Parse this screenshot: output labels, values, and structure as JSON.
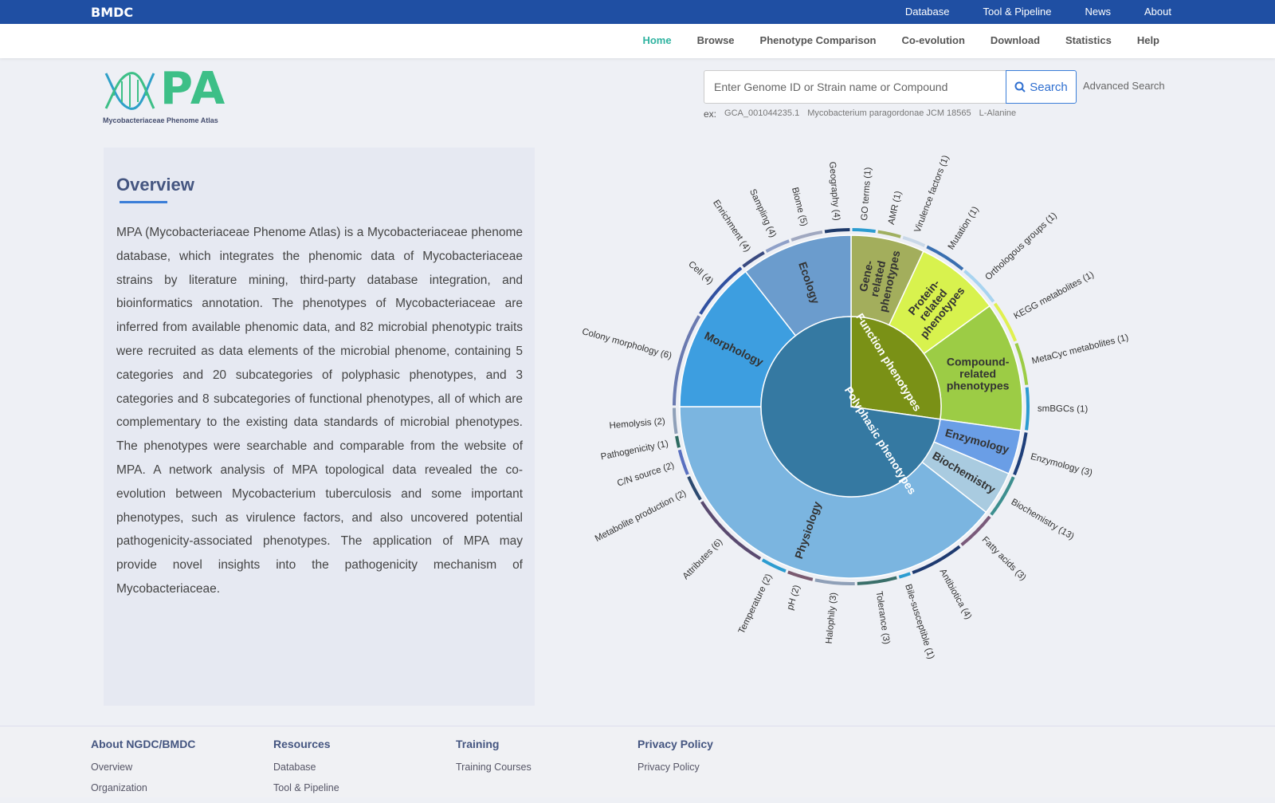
{
  "topbar": {
    "brand": "BMDC",
    "links": [
      "Database",
      "Tool & Pipeline",
      "News",
      "About"
    ]
  },
  "nav": {
    "items": [
      "Home",
      "Browse",
      "Phenotype Comparison",
      "Co-evolution",
      "Download",
      "Statistics",
      "Help"
    ],
    "active": "Home"
  },
  "logo": {
    "title": "PA",
    "subtitle": "Mycobacteriaceae Phenome Atlas"
  },
  "search": {
    "placeholder": "Enter Genome ID or Strain name or Compound",
    "button_label": "Search",
    "advanced_label": "Advanced Search",
    "examples_label": "ex:",
    "examples": [
      "GCA_001044235.1",
      "Mycobacterium paragordonae JCM 18565",
      "L-Alanine"
    ]
  },
  "overview": {
    "title": "Overview",
    "text": "MPA (Mycobacteriaceae Phenome Atlas) is a Mycobacteriaceae phenome database, which integrates the phenomic data of Mycobacteriaceae strains by literature mining, third-party database integration, and bioinformatics annotation. The phenotypes of Mycobacteriaceae are inferred from available phenomic data, and 82 microbial phenotypic traits were recruited as data elements of the microbial phenome, containing 5 categories and 20 subcategories of polyphasic phenotypes, and 3 categories and 8 subcategories of functional phenotypes, all of which are complementary to the existing data standards of microbial phenotypes. The phenotypes were searchable and comparable from the website of MPA. A network analysis of MPA topological data revealed the co-evolution between Mycobacterium tuberculosis and some important phenotypes, such as virulence factors, and also uncovered potential pathogenicity-associated phenotypes. The application of MPA may provide novel insights into the pathogenicity mechanism of Mycobacteriaceae."
  },
  "chart_data": {
    "type": "sunburst",
    "inner": [
      {
        "name": "Function phenotypes",
        "color": "#7a9116"
      },
      {
        "name": "Polyphasic phenotypes",
        "color": "#3579a2"
      }
    ],
    "middle": [
      {
        "name": "Gene-related phenotypes",
        "parent": "Function phenotypes",
        "color": "#a3ae5c"
      },
      {
        "name": "Protein-related phenotypes",
        "parent": "Function phenotypes",
        "color": "#d8f24e"
      },
      {
        "name": "Compound-related phenotypes",
        "parent": "Function phenotypes",
        "color": "#9ccc45"
      },
      {
        "name": "Enzymology",
        "parent": "Polyphasic phenotypes",
        "color": "#6a9ee6"
      },
      {
        "name": "Biochemistry",
        "parent": "Polyphasic phenotypes",
        "color": "#a9cbe0"
      },
      {
        "name": "Physiology",
        "parent": "Polyphasic phenotypes",
        "color": "#7bb5e0"
      },
      {
        "name": "Morphology",
        "parent": "Polyphasic phenotypes",
        "color": "#3d9ee0"
      },
      {
        "name": "Ecology",
        "parent": "Polyphasic phenotypes",
        "color": "#6b9ccd"
      }
    ],
    "outer": [
      {
        "label": "GO terms (1)",
        "value": 1,
        "parent": "Gene-related phenotypes",
        "color": "#2c9cd0"
      },
      {
        "label": "AMR (1)",
        "value": 1,
        "parent": "Gene-related phenotypes",
        "color": "#a0b060"
      },
      {
        "label": "Virulence factors (1)",
        "value": 1,
        "parent": "Gene-related phenotypes",
        "color": "#c9d8e8"
      },
      {
        "label": "Mutation (1)",
        "value": 1,
        "parent": "Protein-related phenotypes",
        "color": "#3a6fb0"
      },
      {
        "label": "Orthologous groups (1)",
        "value": 1,
        "parent": "Protein-related phenotypes",
        "color": "#a8d4f0"
      },
      {
        "label": "KEGG metabolites (1)",
        "value": 1,
        "parent": "Compound-related phenotypes",
        "color": "#e0f050"
      },
      {
        "label": "MetaCyc metabolites (1)",
        "value": 1,
        "parent": "Compound-related phenotypes",
        "color": "#9ccc45"
      },
      {
        "label": "smBGCs (1)",
        "value": 1,
        "parent": "Compound-related phenotypes",
        "color": "#2c9cd0"
      },
      {
        "label": "Enzymology (3)",
        "value": 3,
        "parent": "Enzymology",
        "color": "#1e3f7a"
      },
      {
        "label": "Biochemistry (13)",
        "value": 13,
        "parent": "Biochemistry",
        "color": "#3d8f8f"
      },
      {
        "label": "Fatty acids (3)",
        "value": 3,
        "parent": "Physiology",
        "color": "#7a5a7a"
      },
      {
        "label": "Antibiotica (4)",
        "value": 4,
        "parent": "Physiology",
        "color": "#1e3a70"
      },
      {
        "label": "Bile-susceptible (1)",
        "value": 1,
        "parent": "Physiology",
        "color": "#2c9cd0"
      },
      {
        "label": "Tolerance (3)",
        "value": 3,
        "parent": "Physiology",
        "color": "#3a6f6a"
      },
      {
        "label": "Halophily (3)",
        "value": 3,
        "parent": "Physiology",
        "color": "#8fa0b8"
      },
      {
        "label": "pH (2)",
        "value": 2,
        "parent": "Physiology",
        "color": "#7a5a70"
      },
      {
        "label": "Temperature (2)",
        "value": 2,
        "parent": "Physiology",
        "color": "#2c9cd0"
      },
      {
        "label": "Attributes (6)",
        "value": 6,
        "parent": "Physiology",
        "color": "#5a4a70"
      },
      {
        "label": "Metabolite production (2)",
        "value": 2,
        "parent": "Physiology",
        "color": "#2c4a70"
      },
      {
        "label": "C/N source (2)",
        "value": 2,
        "parent": "Physiology",
        "color": "#5a70c0"
      },
      {
        "label": "Pathogenicity (1)",
        "value": 1,
        "parent": "Physiology",
        "color": "#2c6a60"
      },
      {
        "label": "Hemolysis (2)",
        "value": 2,
        "parent": "Physiology",
        "color": "#8fa0b8"
      },
      {
        "label": "Colony morphology (6)",
        "value": 6,
        "parent": "Morphology",
        "color": "#6a7ab0"
      },
      {
        "label": "Cell (4)",
        "value": 4,
        "parent": "Morphology",
        "color": "#3050a0"
      },
      {
        "label": "Enrichment (4)",
        "value": 4,
        "parent": "Ecology",
        "color": "#3a4a80"
      },
      {
        "label": "Sampling (4)",
        "value": 4,
        "parent": "Ecology",
        "color": "#8fa0c8"
      },
      {
        "label": "Biome (5)",
        "value": 5,
        "parent": "Ecology",
        "color": "#a0a8c0"
      },
      {
        "label": "Geography (4)",
        "value": 4,
        "parent": "Ecology",
        "color": "#1e3a6a"
      }
    ]
  },
  "footer": {
    "columns": [
      {
        "title": "About NGDC/BMDC",
        "links": [
          "Overview",
          "Organization"
        ]
      },
      {
        "title": "Resources",
        "links": [
          "Database",
          "Tool & Pipeline"
        ]
      },
      {
        "title": "Training",
        "links": [
          "Training Courses"
        ]
      },
      {
        "title": "Privacy Policy",
        "links": [
          "Privacy Policy"
        ]
      }
    ]
  }
}
